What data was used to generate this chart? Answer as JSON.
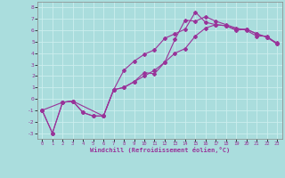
{
  "xlabel": "Windchill (Refroidissement éolien,°C)",
  "xlim": [
    -0.5,
    23.5
  ],
  "ylim": [
    -3.5,
    8.5
  ],
  "xticks": [
    0,
    1,
    2,
    3,
    4,
    5,
    6,
    7,
    8,
    9,
    10,
    11,
    12,
    13,
    14,
    15,
    16,
    17,
    18,
    19,
    20,
    21,
    22,
    23
  ],
  "yticks": [
    -3,
    -2,
    -1,
    0,
    1,
    2,
    3,
    4,
    5,
    6,
    7,
    8
  ],
  "bg_color": "#aadddd",
  "line_color": "#993399",
  "grid_color": "#cceeee",
  "line1_x": [
    0,
    1,
    2,
    3,
    4,
    5,
    6,
    7,
    8,
    9,
    10,
    11,
    12,
    13,
    14,
    15,
    16,
    17,
    18,
    19,
    20,
    21,
    22,
    23
  ],
  "line1_y": [
    -1,
    -3,
    -0.3,
    -0.2,
    -1.2,
    -1.5,
    -1.5,
    0.8,
    1.0,
    1.5,
    2.3,
    2.2,
    3.2,
    5.2,
    6.9,
    6.8,
    7.2,
    6.8,
    6.5,
    6.2,
    6.0,
    5.5,
    5.5,
    4.8
  ],
  "line2_x": [
    0,
    1,
    2,
    3,
    4,
    5,
    6,
    7,
    8,
    9,
    10,
    11,
    12,
    13,
    14,
    15,
    16,
    17,
    18,
    19,
    20,
    21,
    22,
    23
  ],
  "line2_y": [
    -1,
    -3,
    -0.3,
    -0.2,
    -1.2,
    -1.5,
    -1.5,
    0.8,
    2.5,
    3.3,
    3.9,
    4.3,
    5.3,
    5.7,
    6.1,
    7.6,
    6.7,
    6.5,
    6.4,
    6.0,
    6.1,
    5.7,
    5.4,
    4.9
  ],
  "line3_x": [
    0,
    2,
    3,
    6,
    7,
    8,
    9,
    10,
    11,
    12,
    13,
    14,
    15,
    16,
    17,
    18,
    19,
    20,
    21,
    22,
    23
  ],
  "line3_y": [
    -1,
    -0.3,
    -0.2,
    -1.5,
    0.8,
    1.0,
    1.5,
    2.0,
    2.5,
    3.2,
    4.0,
    4.4,
    5.5,
    6.2,
    6.5,
    6.4,
    6.1,
    6.1,
    5.7,
    5.4,
    4.8
  ],
  "marker": "D",
  "markersize": 2,
  "linewidth": 0.8
}
